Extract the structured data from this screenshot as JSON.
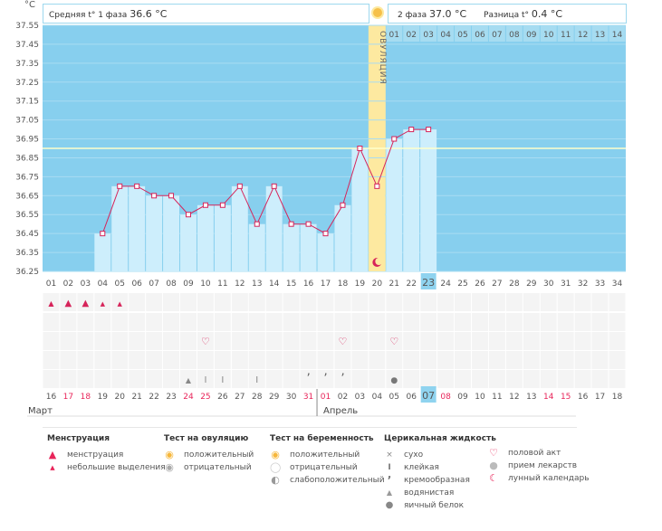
{
  "unit_label": "°C",
  "summary": {
    "phase1_label": "Средняя t° 1 фаза",
    "phase1_value": "36.6 °C",
    "phase2_label": "2 фаза",
    "phase2_value": "37.0 °C",
    "diff_label": "Разница t°",
    "diff_value": "0.4 °C"
  },
  "ovulation_label": "ОВУЛЯЦИЯ",
  "chart_data": {
    "type": "line",
    "yticks": [
      "37.55",
      "37.45",
      "37.35",
      "37.25",
      "37.15",
      "37.05",
      "36.95",
      "36.85",
      "36.75",
      "36.65",
      "36.55",
      "36.45",
      "36.35",
      "36.25"
    ],
    "ylim": [
      36.25,
      37.55
    ],
    "cycle_days": [
      "01",
      "02",
      "03",
      "04",
      "05",
      "06",
      "07",
      "08",
      "09",
      "10",
      "11",
      "12",
      "13",
      "14",
      "15",
      "16",
      "17",
      "18",
      "19",
      "20",
      "21",
      "22",
      "23",
      "24",
      "25",
      "26",
      "27",
      "28",
      "29",
      "30",
      "31",
      "32",
      "33",
      "34"
    ],
    "phase2_days": [
      "01",
      "02",
      "03",
      "04",
      "05",
      "06",
      "07",
      "08",
      "09",
      "10",
      "11",
      "12",
      "13",
      "14"
    ],
    "temps": [
      null,
      null,
      null,
      36.45,
      36.7,
      36.7,
      36.65,
      36.65,
      36.55,
      36.6,
      36.6,
      36.7,
      36.5,
      36.7,
      36.5,
      36.5,
      36.45,
      36.6,
      36.9,
      36.7,
      36.95,
      37.0,
      37.0
    ],
    "coverline": 36.9,
    "ovulation_day": "20",
    "current_day": "23"
  },
  "dates": [
    "16",
    "17",
    "18",
    "19",
    "20",
    "21",
    "22",
    "23",
    "24",
    "25",
    "26",
    "27",
    "28",
    "29",
    "30",
    "31",
    "01",
    "02",
    "03",
    "04",
    "05",
    "06",
    "07",
    "08",
    "09",
    "10",
    "11",
    "12",
    "13",
    "14",
    "15",
    "16",
    "17",
    "18"
  ],
  "red_dates": [
    1,
    2,
    8,
    9,
    15,
    16,
    23,
    29,
    30
  ],
  "current_date_index": 22,
  "months": {
    "march": "Март",
    "april": "Апрель"
  },
  "legend": {
    "menstruation": {
      "title": "Менструация",
      "items": [
        "менструация",
        "небольшие выделения"
      ]
    },
    "ovulation_test": {
      "title": "Тест на овуляцию",
      "items": [
        "положительный",
        "отрицательный"
      ]
    },
    "pregnancy_test": {
      "title": "Тест на беременность",
      "items": [
        "положительный",
        "отрицательный",
        "слабоположительный"
      ]
    },
    "cervical_fluid": {
      "title": "Церикальная жидкость",
      "items": [
        "сухо",
        "клейкая",
        "кремообразная",
        "водянистая",
        "яичный белок"
      ]
    },
    "other": {
      "items": [
        "половой акт",
        "прием лекарств",
        "лунный календарь"
      ]
    }
  },
  "colors": {
    "grid_bg": "#87cfee",
    "bar": "#cdeefc",
    "line": "#d6245a",
    "ovulation": "#fde9a0",
    "coverline": "#ffffcc",
    "highlight": "#8fd3ef",
    "red_text": "#e8255a"
  }
}
